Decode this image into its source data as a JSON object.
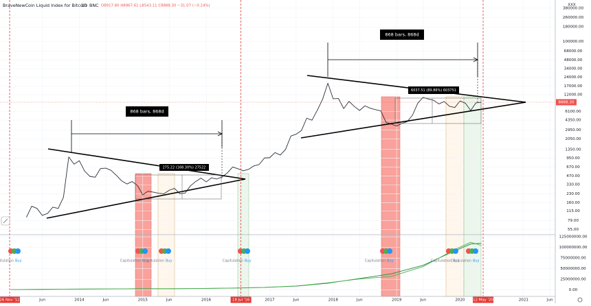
{
  "chart_data": [
    {
      "type": "line",
      "title": "BraveNewCoin Liquid Index for Bitcoin",
      "interval": "1D",
      "exchange": "BNC",
      "ohlc": "O8917.80 H8967.61 L8543.11 C8888.30 −31.07 (−0.24%)",
      "currency_label": "XXX",
      "last_value_label": "8888.30",
      "log_scale": true,
      "grid": true,
      "xlim": [
        "2012-10",
        "2021-07"
      ],
      "ylim": [
        45,
        400000
      ],
      "yticks": [
        {
          "value": 380000,
          "label": "380000.00"
        },
        {
          "value": 260000,
          "label": "260000.00"
        },
        {
          "value": 180000,
          "label": "180000.00"
        },
        {
          "value": 100000,
          "label": "100000.00"
        },
        {
          "value": 68000,
          "label": "68000.00"
        },
        {
          "value": 48000,
          "label": "48000.00"
        },
        {
          "value": 34000,
          "label": "34000.00"
        },
        {
          "value": 24000,
          "label": "24000.00"
        },
        {
          "value": 17000,
          "label": "17000.00"
        },
        {
          "value": 12000,
          "label": "12000.00"
        },
        {
          "value": 6100,
          "label": "6100.00"
        },
        {
          "value": 4350,
          "label": "4350.00"
        },
        {
          "value": 2950,
          "label": "2950.00"
        },
        {
          "value": 2050,
          "label": "2050.00"
        },
        {
          "value": 1350,
          "label": "1350.00"
        },
        {
          "value": 950,
          "label": "950.00"
        },
        {
          "value": 670,
          "label": "670.00"
        },
        {
          "value": 470,
          "label": "470.00"
        },
        {
          "value": 330,
          "label": "330.00"
        },
        {
          "value": 230,
          "label": "230.00"
        },
        {
          "value": 160,
          "label": "160.00"
        },
        {
          "value": 115,
          "label": "115.00"
        },
        {
          "value": 79,
          "label": "79.00"
        },
        {
          "value": 55,
          "label": "55.00"
        }
      ],
      "xticks": [
        {
          "value": "2013-06",
          "label": "Jun"
        },
        {
          "value": "2014-01",
          "label": "2014"
        },
        {
          "value": "2014-06",
          "label": "Jun"
        },
        {
          "value": "2015-01",
          "label": "2015"
        },
        {
          "value": "2015-06",
          "label": "Jun"
        },
        {
          "value": "2016-01",
          "label": "2016"
        },
        {
          "value": "2017-01",
          "label": "2017"
        },
        {
          "value": "2017-06",
          "label": "Jun"
        },
        {
          "value": "2018-01",
          "label": "2018"
        },
        {
          "value": "2018-06",
          "label": "Jun"
        },
        {
          "value": "2019-01",
          "label": "2019"
        },
        {
          "value": "2019-06",
          "label": "Jun"
        },
        {
          "value": "2020-01",
          "label": "2020"
        },
        {
          "value": "2021-01",
          "label": "2021"
        },
        {
          "value": "2021-06",
          "label": "Jun"
        }
      ],
      "date_markers": [
        {
          "x": "2012-11-26",
          "label": "26 Nov '12"
        },
        {
          "x": "2016-07-18",
          "label": "18 Jul '16"
        },
        {
          "x": "2020-05-12",
          "label": "12 May '20"
        }
      ],
      "annotations": [
        "868 bars, 868d",
        "868 bars, 868d",
        "275.22 (168.30%) 27522",
        "6037.51 (89.86%) 603751"
      ],
      "color": "#2a2e39",
      "x": [
        "2013-03",
        "2013-04",
        "2013-05",
        "2013-06",
        "2013-07",
        "2013-08",
        "2013-09",
        "2013-10",
        "2013-11",
        "2013-12",
        "2014-01",
        "2014-02",
        "2014-03",
        "2014-04",
        "2014-05",
        "2014-06",
        "2014-07",
        "2014-08",
        "2014-09",
        "2014-10",
        "2014-11",
        "2014-12",
        "2015-01",
        "2015-02",
        "2015-03",
        "2015-04",
        "2015-05",
        "2015-06",
        "2015-07",
        "2015-08",
        "2015-09",
        "2015-10",
        "2015-11",
        "2015-12",
        "2016-01",
        "2016-02",
        "2016-03",
        "2016-04",
        "2016-05",
        "2016-06",
        "2016-07",
        "2016-08",
        "2016-09",
        "2016-10",
        "2016-11",
        "2016-12",
        "2017-01",
        "2017-02",
        "2017-03",
        "2017-04",
        "2017-05",
        "2017-06",
        "2017-07",
        "2017-08",
        "2017-09",
        "2017-10",
        "2017-11",
        "2017-12",
        "2018-01",
        "2018-02",
        "2018-03",
        "2018-04",
        "2018-05",
        "2018-06",
        "2018-07",
        "2018-08",
        "2018-09",
        "2018-10",
        "2018-11",
        "2018-12",
        "2019-01",
        "2019-02",
        "2019-03",
        "2019-04",
        "2019-05",
        "2019-06",
        "2019-07",
        "2019-08",
        "2019-09",
        "2019-10",
        "2019-11",
        "2019-12",
        "2020-01",
        "2020-02",
        "2020-03",
        "2020-04",
        "2020-05"
      ],
      "values": [
        90,
        140,
        128,
        97,
        105,
        135,
        128,
        200,
        1000,
        750,
        860,
        570,
        460,
        445,
        630,
        640,
        585,
        480,
        385,
        340,
        375,
        320,
        220,
        255,
        245,
        235,
        230,
        265,
        285,
        230,
        237,
        315,
        375,
        430,
        370,
        435,
        415,
        450,
        530,
        670,
        625,
        575,
        610,
        700,
        740,
        960,
        970,
        1190,
        1080,
        1350,
        2300,
        2480,
        2870,
        4700,
        4340,
        6450,
        10000,
        19000,
        10200,
        10300,
        6900,
        9200,
        7500,
        6400,
        7700,
        7000,
        6600,
        6300,
        4000,
        3700,
        3450,
        3800,
        4100,
        5300,
        8550,
        10800,
        10100,
        9600,
        8300,
        9150,
        7550,
        7200,
        9350,
        8550,
        6400,
        8650,
        8888.3
      ]
    },
    {
      "type": "line",
      "ylim": [
        -15000000,
        130000000
      ],
      "yticks": [
        {
          "value": 125000000,
          "label": "125000000.00"
        },
        {
          "value": 100000000,
          "label": "100000000.00"
        },
        {
          "value": 75000000,
          "label": "75000000.00"
        },
        {
          "value": 50000000,
          "label": "50000000.00"
        },
        {
          "value": 25000000,
          "label": "25000000.00"
        },
        {
          "value": 0,
          "label": "0.00"
        }
      ],
      "signal_labels": [
        "Capitulation",
        "Buy",
        "Capitulation",
        "Buy",
        "Capitulation",
        "Buy",
        "Capitulation",
        "Buy",
        "Capitulation",
        "Buy",
        "Capitulation",
        "Buy",
        "Capitulation",
        "Buy"
      ],
      "x": [
        "2012-12",
        "2013-06",
        "2013-12",
        "2014-06",
        "2014-12",
        "2015-06",
        "2015-12",
        "2016-06",
        "2016-12",
        "2017-06",
        "2017-12",
        "2018-06",
        "2018-12",
        "2019-06",
        "2019-12",
        "2020-03",
        "2020-05"
      ],
      "series": [
        {
          "color": "#1e8a3c",
          "values": [
            1000000,
            1500000,
            2000000,
            2500000,
            3000000,
            3000000,
            3500000,
            4500000,
            6000000,
            9000000,
            16000000,
            27000000,
            38000000,
            58000000,
            92000000,
            108000000,
            110000000
          ]
        },
        {
          "color": "#4caf50",
          "values": [
            1000000,
            1500000,
            2200000,
            2600000,
            3000000,
            3000000,
            3600000,
            4600000,
            6200000,
            9500000,
            17000000,
            26000000,
            32000000,
            55000000,
            95000000,
            112000000,
            105000000
          ]
        }
      ]
    }
  ]
}
